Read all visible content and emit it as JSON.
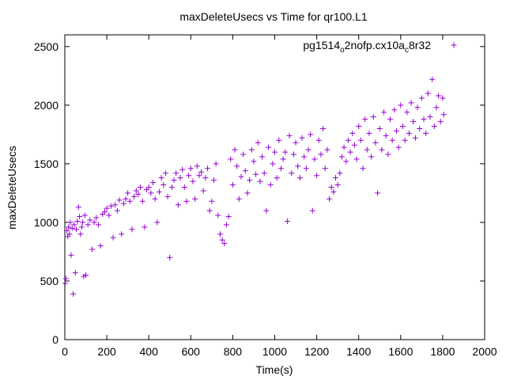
{
  "chart_data": {
    "type": "scatter",
    "title": "maxDeleteUsecs vs Time for qr100.L1",
    "xlabel": "Time(s)",
    "ylabel": "maxDeleteUsecs",
    "xlim": [
      0,
      2000
    ],
    "ylim": [
      0,
      2600
    ],
    "xticks": [
      0,
      200,
      400,
      600,
      800,
      1000,
      1200,
      1400,
      1600,
      1800,
      2000
    ],
    "yticks": [
      0,
      500,
      1000,
      1500,
      2000,
      2500
    ],
    "grid": false,
    "legend_position": "top-right",
    "marker": "+",
    "series": [
      {
        "name_parts": {
          "base": "pg1514",
          "sub1": "o",
          "mid": "2nofp.cx10a",
          "sub2": "c",
          "tail": "8r32"
        },
        "color": "#9400d3",
        "points": [
          [
            2,
            480
          ],
          [
            5,
            520
          ],
          [
            10,
            930
          ],
          [
            14,
            880
          ],
          [
            18,
            960
          ],
          [
            22,
            900
          ],
          [
            26,
            1000
          ],
          [
            30,
            720
          ],
          [
            35,
            950
          ],
          [
            40,
            390
          ],
          [
            45,
            980
          ],
          [
            50,
            570
          ],
          [
            55,
            940
          ],
          [
            60,
            1010
          ],
          [
            65,
            1130
          ],
          [
            70,
            1050
          ],
          [
            75,
            900
          ],
          [
            80,
            960
          ],
          [
            85,
            1000
          ],
          [
            90,
            540
          ],
          [
            95,
            1060
          ],
          [
            100,
            550
          ],
          [
            110,
            980
          ],
          [
            120,
            1020
          ],
          [
            130,
            770
          ],
          [
            140,
            1000
          ],
          [
            150,
            1040
          ],
          [
            160,
            980
          ],
          [
            170,
            800
          ],
          [
            180,
            1070
          ],
          [
            190,
            1090
          ],
          [
            200,
            1120
          ],
          [
            210,
            1060
          ],
          [
            220,
            1140
          ],
          [
            230,
            870
          ],
          [
            240,
            1150
          ],
          [
            250,
            1100
          ],
          [
            260,
            1190
          ],
          [
            270,
            900
          ],
          [
            280,
            1160
          ],
          [
            290,
            1200
          ],
          [
            300,
            1250
          ],
          [
            310,
            1180
          ],
          [
            320,
            940
          ],
          [
            330,
            1220
          ],
          [
            340,
            1270
          ],
          [
            350,
            1240
          ],
          [
            360,
            1300
          ],
          [
            370,
            1180
          ],
          [
            380,
            960
          ],
          [
            390,
            1280
          ],
          [
            400,
            1300
          ],
          [
            410,
            1250
          ],
          [
            420,
            1340
          ],
          [
            430,
            1200
          ],
          [
            440,
            1000
          ],
          [
            450,
            1260
          ],
          [
            460,
            1380
          ],
          [
            470,
            1320
          ],
          [
            480,
            1420
          ],
          [
            490,
            1220
          ],
          [
            500,
            700
          ],
          [
            510,
            1300
          ],
          [
            520,
            1360
          ],
          [
            530,
            1420
          ],
          [
            540,
            1150
          ],
          [
            550,
            1380
          ],
          [
            560,
            1450
          ],
          [
            570,
            1300
          ],
          [
            580,
            1180
          ],
          [
            590,
            1400
          ],
          [
            600,
            1460
          ],
          [
            610,
            1350
          ],
          [
            620,
            1200
          ],
          [
            630,
            1480
          ],
          [
            640,
            1400
          ],
          [
            650,
            1430
          ],
          [
            660,
            1270
          ],
          [
            670,
            1380
          ],
          [
            680,
            1460
          ],
          [
            690,
            1100
          ],
          [
            700,
            1180
          ],
          [
            710,
            1360
          ],
          [
            720,
            1500
          ],
          [
            730,
            1060
          ],
          [
            740,
            900
          ],
          [
            750,
            850
          ],
          [
            760,
            820
          ],
          [
            770,
            980
          ],
          [
            780,
            1050
          ],
          [
            790,
            1540
          ],
          [
            800,
            1320
          ],
          [
            810,
            1620
          ],
          [
            820,
            1480
          ],
          [
            830,
            1200
          ],
          [
            840,
            1390
          ],
          [
            850,
            1580
          ],
          [
            860,
            1440
          ],
          [
            870,
            1250
          ],
          [
            880,
            1360
          ],
          [
            890,
            1620
          ],
          [
            900,
            1520
          ],
          [
            910,
            1410
          ],
          [
            920,
            1680
          ],
          [
            930,
            1350
          ],
          [
            940,
            1560
          ],
          [
            950,
            1420
          ],
          [
            960,
            1100
          ],
          [
            970,
            1640
          ],
          [
            980,
            1320
          ],
          [
            990,
            1500
          ],
          [
            1000,
            1600
          ],
          [
            1010,
            1380
          ],
          [
            1020,
            1700
          ],
          [
            1030,
            1460
          ],
          [
            1040,
            1540
          ],
          [
            1050,
            1600
          ],
          [
            1060,
            1010
          ],
          [
            1070,
            1740
          ],
          [
            1080,
            1420
          ],
          [
            1090,
            1580
          ],
          [
            1100,
            1680
          ],
          [
            1110,
            1480
          ],
          [
            1120,
            1380
          ],
          [
            1130,
            1720
          ],
          [
            1140,
            1560
          ],
          [
            1150,
            1460
          ],
          [
            1160,
            1620
          ],
          [
            1170,
            1750
          ],
          [
            1180,
            1100
          ],
          [
            1190,
            1540
          ],
          [
            1200,
            1400
          ],
          [
            1210,
            1700
          ],
          [
            1220,
            1580
          ],
          [
            1230,
            1800
          ],
          [
            1240,
            1460
          ],
          [
            1250,
            1620
          ],
          [
            1260,
            1200
          ],
          [
            1270,
            1300
          ],
          [
            1280,
            1260
          ],
          [
            1290,
            1380
          ],
          [
            1300,
            1320
          ],
          [
            1310,
            1420
          ],
          [
            1320,
            1560
          ],
          [
            1330,
            1640
          ],
          [
            1340,
            1520
          ],
          [
            1350,
            1700
          ],
          [
            1360,
            1600
          ],
          [
            1370,
            1760
          ],
          [
            1380,
            1660
          ],
          [
            1390,
            1540
          ],
          [
            1400,
            1820
          ],
          [
            1410,
            1700
          ],
          [
            1420,
            1460
          ],
          [
            1430,
            1880
          ],
          [
            1440,
            1620
          ],
          [
            1450,
            1760
          ],
          [
            1460,
            1560
          ],
          [
            1470,
            1900
          ],
          [
            1480,
            1680
          ],
          [
            1490,
            1250
          ],
          [
            1500,
            1800
          ],
          [
            1510,
            1620
          ],
          [
            1520,
            1940
          ],
          [
            1530,
            1740
          ],
          [
            1540,
            1580
          ],
          [
            1550,
            1880
          ],
          [
            1560,
            1700
          ],
          [
            1570,
            1960
          ],
          [
            1580,
            1780
          ],
          [
            1590,
            1640
          ],
          [
            1600,
            2000
          ],
          [
            1610,
            1820
          ],
          [
            1620,
            1700
          ],
          [
            1630,
            1940
          ],
          [
            1640,
            1760
          ],
          [
            1650,
            2020
          ],
          [
            1660,
            1860
          ],
          [
            1670,
            1720
          ],
          [
            1680,
            1980
          ],
          [
            1690,
            1800
          ],
          [
            1700,
            2060
          ],
          [
            1710,
            1880
          ],
          [
            1720,
            1760
          ],
          [
            1730,
            2100
          ],
          [
            1740,
            1900
          ],
          [
            1750,
            2220
          ],
          [
            1760,
            1820
          ],
          [
            1770,
            1980
          ],
          [
            1780,
            2080
          ],
          [
            1790,
            1860
          ],
          [
            1800,
            2060
          ],
          [
            1805,
            1920
          ]
        ]
      }
    ]
  }
}
